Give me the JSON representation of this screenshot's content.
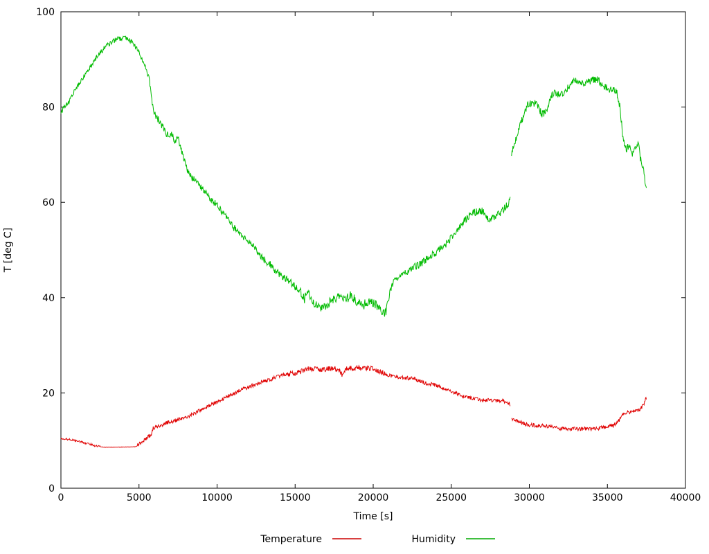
{
  "chart_data": {
    "type": "line",
    "title": "",
    "xlabel": "Time [s]",
    "ylabel": "T [deg C]",
    "xlim": [
      0,
      40000
    ],
    "ylim": [
      0,
      100
    ],
    "xticks": [
      0,
      5000,
      10000,
      15000,
      20000,
      25000,
      30000,
      35000,
      40000
    ],
    "yticks": [
      0,
      20,
      40,
      60,
      80,
      100
    ],
    "grid": false,
    "legend_position": "bottom-center",
    "background": "#ffffff",
    "axis_color": "#000000",
    "legend": [
      {
        "label": "Temperature",
        "color": "#cc0000"
      },
      {
        "label": "Humidity",
        "color": "#00aa00"
      }
    ],
    "series": [
      {
        "name": "Temperature",
        "color": "#e00000",
        "noise": 0.4,
        "noise_zones": [
          [
            0,
            2550,
            0.22
          ],
          [
            2550,
            4900,
            0.05
          ],
          [
            14500,
            21000,
            0.55
          ]
        ],
        "gaps": [
          [
            28770,
            28845
          ]
        ],
        "points": [
          [
            0,
            10.5
          ],
          [
            300,
            10.3
          ],
          [
            600,
            10.2
          ],
          [
            900,
            10.0
          ],
          [
            1200,
            9.8
          ],
          [
            1500,
            9.5
          ],
          [
            1800,
            9.3
          ],
          [
            2100,
            9.0
          ],
          [
            2400,
            8.8
          ],
          [
            2700,
            8.6
          ],
          [
            3500,
            8.6
          ],
          [
            4800,
            8.7
          ],
          [
            5000,
            9.2
          ],
          [
            5300,
            10.0
          ],
          [
            5600,
            10.8
          ],
          [
            5800,
            11.2
          ],
          [
            5900,
            12.6
          ],
          [
            6200,
            13.0
          ],
          [
            6500,
            13.3
          ],
          [
            6800,
            13.8
          ],
          [
            7100,
            14.0
          ],
          [
            7400,
            14.2
          ],
          [
            7700,
            14.5
          ],
          [
            8000,
            15.0
          ],
          [
            8300,
            15.3
          ],
          [
            8600,
            15.8
          ],
          [
            8900,
            16.3
          ],
          [
            9200,
            16.8
          ],
          [
            9500,
            17.3
          ],
          [
            9800,
            17.8
          ],
          [
            10100,
            18.3
          ],
          [
            10400,
            18.8
          ],
          [
            10700,
            19.3
          ],
          [
            11000,
            19.8
          ],
          [
            11300,
            20.2
          ],
          [
            11600,
            20.8
          ],
          [
            11900,
            21.0
          ],
          [
            12200,
            21.5
          ],
          [
            12500,
            21.8
          ],
          [
            12800,
            22.2
          ],
          [
            13100,
            22.5
          ],
          [
            13400,
            22.8
          ],
          [
            13700,
            23.2
          ],
          [
            14000,
            23.5
          ],
          [
            14300,
            23.8
          ],
          [
            14600,
            24.0
          ],
          [
            15000,
            24.2
          ],
          [
            15400,
            24.5
          ],
          [
            15800,
            25.0
          ],
          [
            16200,
            25.0
          ],
          [
            16600,
            24.8
          ],
          [
            17000,
            25.0
          ],
          [
            17400,
            25.2
          ],
          [
            17800,
            24.8
          ],
          [
            18000,
            23.9
          ],
          [
            18200,
            25.0
          ],
          [
            18600,
            25.2
          ],
          [
            19000,
            25.3
          ],
          [
            19400,
            25.0
          ],
          [
            19800,
            25.2
          ],
          [
            20200,
            24.8
          ],
          [
            20600,
            24.3
          ],
          [
            21000,
            23.8
          ],
          [
            21400,
            23.3
          ],
          [
            21800,
            23.2
          ],
          [
            22200,
            23.1
          ],
          [
            22600,
            23.0
          ],
          [
            23000,
            22.5
          ],
          [
            23400,
            22.0
          ],
          [
            23800,
            21.8
          ],
          [
            24200,
            21.3
          ],
          [
            24600,
            20.8
          ],
          [
            25000,
            20.3
          ],
          [
            25400,
            19.8
          ],
          [
            25800,
            19.3
          ],
          [
            26200,
            19.0
          ],
          [
            26600,
            18.7
          ],
          [
            27000,
            18.5
          ],
          [
            27400,
            18.5
          ],
          [
            27800,
            18.3
          ],
          [
            28200,
            18.4
          ],
          [
            28600,
            18.0
          ],
          [
            28760,
            17.8
          ],
          [
            28850,
            14.6
          ],
          [
            29100,
            14.2
          ],
          [
            29400,
            13.8
          ],
          [
            29700,
            13.5
          ],
          [
            30000,
            13.3
          ],
          [
            30300,
            13.2
          ],
          [
            30600,
            13.1
          ],
          [
            30900,
            13.2
          ],
          [
            31200,
            13.0
          ],
          [
            31500,
            12.8
          ],
          [
            31800,
            12.6
          ],
          [
            32100,
            12.5
          ],
          [
            32400,
            12.5
          ],
          [
            32700,
            12.4
          ],
          [
            33000,
            12.5
          ],
          [
            33300,
            12.4
          ],
          [
            33600,
            12.5
          ],
          [
            33900,
            12.4
          ],
          [
            34200,
            12.5
          ],
          [
            34500,
            12.6
          ],
          [
            34800,
            12.8
          ],
          [
            35100,
            13.0
          ],
          [
            35400,
            13.1
          ],
          [
            35700,
            14.0
          ],
          [
            35900,
            15.2
          ],
          [
            36100,
            15.8
          ],
          [
            36300,
            16.0
          ],
          [
            36500,
            15.8
          ],
          [
            36700,
            16.2
          ],
          [
            36900,
            16.3
          ],
          [
            37100,
            16.5
          ],
          [
            37250,
            17.2
          ],
          [
            37400,
            18.2
          ],
          [
            37500,
            19.0
          ]
        ]
      },
      {
        "name": "Humidity",
        "color": "#00bb00",
        "noise": 0.75,
        "noise_zones": [
          [
            0,
            5600,
            0.5
          ],
          [
            15000,
            21000,
            1.0
          ]
        ],
        "gaps": [
          [
            28770,
            28845
          ]
        ],
        "points": [
          [
            0,
            78.5
          ],
          [
            200,
            80.0
          ],
          [
            500,
            81.0
          ],
          [
            800,
            83.0
          ],
          [
            1200,
            85.0
          ],
          [
            1600,
            87.0
          ],
          [
            2000,
            89.0
          ],
          [
            2400,
            91.0
          ],
          [
            2800,
            92.5
          ],
          [
            3200,
            93.5
          ],
          [
            3600,
            94.3
          ],
          [
            4000,
            94.5
          ],
          [
            4300,
            94.3
          ],
          [
            4600,
            93.5
          ],
          [
            5000,
            91.5
          ],
          [
            5400,
            88.5
          ],
          [
            5700,
            85.0
          ],
          [
            5850,
            80.5
          ],
          [
            6000,
            78.5
          ],
          [
            6300,
            77.0
          ],
          [
            6600,
            75.5
          ],
          [
            6900,
            73.5
          ],
          [
            7100,
            74.5
          ],
          [
            7300,
            72.5
          ],
          [
            7500,
            73.5
          ],
          [
            7700,
            71.0
          ],
          [
            8000,
            67.5
          ],
          [
            8300,
            65.5
          ],
          [
            8600,
            64.5
          ],
          [
            9000,
            63.0
          ],
          [
            9400,
            61.5
          ],
          [
            9800,
            60.0
          ],
          [
            10200,
            58.5
          ],
          [
            10600,
            57.0
          ],
          [
            11000,
            55.0
          ],
          [
            11400,
            53.5
          ],
          [
            11800,
            52.5
          ],
          [
            12200,
            51.5
          ],
          [
            12600,
            49.5
          ],
          [
            13000,
            48.0
          ],
          [
            13400,
            47.0
          ],
          [
            13800,
            45.5
          ],
          [
            14200,
            44.5
          ],
          [
            14600,
            43.5
          ],
          [
            15000,
            42.5
          ],
          [
            15400,
            41.0
          ],
          [
            15600,
            39.5
          ],
          [
            15800,
            41.5
          ],
          [
            16200,
            39.0
          ],
          [
            16600,
            38.0
          ],
          [
            17000,
            38.5
          ],
          [
            17400,
            39.5
          ],
          [
            17800,
            40.0
          ],
          [
            18200,
            39.5
          ],
          [
            18600,
            40.5
          ],
          [
            19000,
            39.0
          ],
          [
            19400,
            38.5
          ],
          [
            19800,
            39.5
          ],
          [
            20200,
            38.5
          ],
          [
            20600,
            37.2
          ],
          [
            20800,
            36.8
          ],
          [
            21100,
            41.5
          ],
          [
            21400,
            44.0
          ],
          [
            21800,
            44.5
          ],
          [
            22200,
            45.5
          ],
          [
            22600,
            46.5
          ],
          [
            23000,
            47.0
          ],
          [
            23400,
            48.0
          ],
          [
            23800,
            49.0
          ],
          [
            24200,
            50.0
          ],
          [
            24600,
            51.0
          ],
          [
            25000,
            52.5
          ],
          [
            25400,
            54.0
          ],
          [
            25800,
            56.0
          ],
          [
            26200,
            57.5
          ],
          [
            26600,
            58.0
          ],
          [
            27000,
            58.2
          ],
          [
            27400,
            56.5
          ],
          [
            27800,
            57.0
          ],
          [
            28200,
            58.0
          ],
          [
            28600,
            59.5
          ],
          [
            28760,
            60.5
          ],
          [
            28850,
            70.0
          ],
          [
            29000,
            72.0
          ],
          [
            29300,
            75.0
          ],
          [
            29600,
            78.0
          ],
          [
            29900,
            80.5
          ],
          [
            30200,
            81.0
          ],
          [
            30500,
            80.5
          ],
          [
            30800,
            78.5
          ],
          [
            31100,
            79.0
          ],
          [
            31400,
            82.5
          ],
          [
            31700,
            83.0
          ],
          [
            32000,
            82.5
          ],
          [
            32300,
            83.5
          ],
          [
            32600,
            84.5
          ],
          [
            32900,
            85.8
          ],
          [
            33200,
            85.5
          ],
          [
            33500,
            85.0
          ],
          [
            33800,
            85.3
          ],
          [
            34100,
            85.8
          ],
          [
            34400,
            85.8
          ],
          [
            34700,
            84.5
          ],
          [
            35000,
            84.0
          ],
          [
            35300,
            83.5
          ],
          [
            35600,
            83.3
          ],
          [
            35800,
            80.0
          ],
          [
            36000,
            73.5
          ],
          [
            36200,
            71.0
          ],
          [
            36400,
            72.0
          ],
          [
            36600,
            70.0
          ],
          [
            36800,
            71.5
          ],
          [
            37000,
            72.5
          ],
          [
            37100,
            69.5
          ],
          [
            37300,
            67.0
          ],
          [
            37400,
            64.5
          ],
          [
            37500,
            62.5
          ]
        ]
      }
    ]
  }
}
